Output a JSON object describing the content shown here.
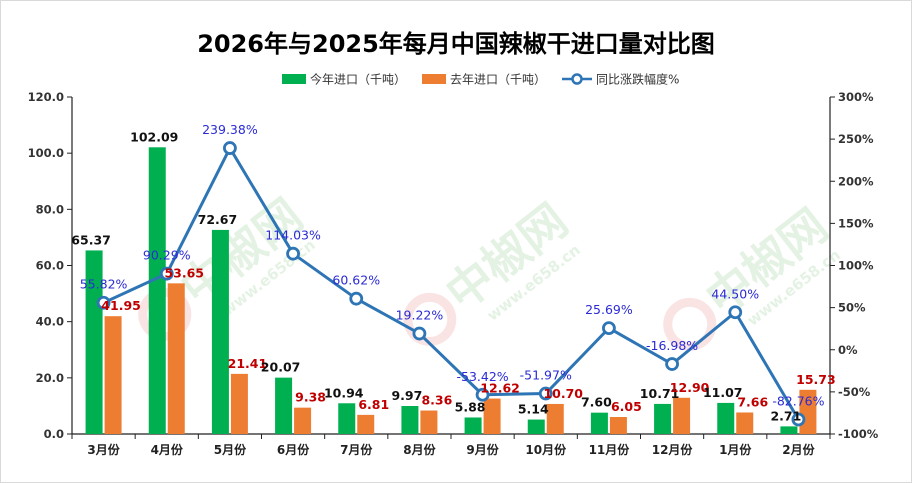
{
  "chart_data": {
    "type": "bar+line",
    "title": "2026年与2025年每月中国辣椒干进口量对比图",
    "categories": [
      "3月份",
      "4月份",
      "5月份",
      "6月份",
      "7月份",
      "8月份",
      "9月份",
      "10月份",
      "11月份",
      "12月份",
      "1月份",
      "2月份"
    ],
    "series": [
      {
        "name": "今年进口（千吨）",
        "kind": "bar",
        "axis": "left",
        "color": "#00b050",
        "values": [
          65.37,
          102.09,
          72.67,
          20.07,
          10.94,
          9.97,
          5.88,
          5.14,
          7.6,
          10.71,
          11.07,
          2.71
        ],
        "labels": [
          "65.37",
          "102.09",
          "72.67",
          "20.07",
          "10.94",
          "9.97",
          "5.88",
          "5.14",
          "7.60",
          "10.71",
          "11.07",
          "2.71"
        ]
      },
      {
        "name": "去年进口（千吨）",
        "kind": "bar",
        "axis": "left",
        "color": "#ed7d31",
        "values": [
          41.95,
          53.65,
          21.41,
          9.38,
          6.81,
          8.36,
          12.62,
          10.7,
          6.05,
          12.9,
          7.66,
          15.73
        ],
        "labels": [
          "41.95",
          "53.65",
          "21.41",
          "9.38",
          "6.81",
          "8.36",
          "12.62",
          "10.70",
          "6.05",
          "12.90",
          "7.66",
          "15.73"
        ]
      },
      {
        "name": "同比涨跌幅度%",
        "kind": "line",
        "axis": "right",
        "color": "#2e75b6",
        "values": [
          55.82,
          90.29,
          239.38,
          114.03,
          60.62,
          19.22,
          -53.42,
          -51.97,
          25.69,
          -16.98,
          44.5,
          -82.76
        ],
        "labels": [
          "55.82%",
          "90.29%",
          "239.38%",
          "114.03%",
          "60.62%",
          "19.22%",
          "-53.42%",
          "-51.97%",
          "25.69%",
          "-16.98%",
          "44.50%",
          "-82.76%"
        ]
      }
    ],
    "y_left": {
      "min": 0,
      "max": 120,
      "ticks": [
        "0.0",
        "20.0",
        "40.0",
        "60.0",
        "80.0",
        "100.0",
        "120.0"
      ],
      "tick_values": [
        0,
        20,
        40,
        60,
        80,
        100,
        120
      ]
    },
    "y_right": {
      "min": -100,
      "max": 300,
      "ticks": [
        "-100%",
        "-50%",
        "0%",
        "50%",
        "100%",
        "150%",
        "200%",
        "250%",
        "300%"
      ],
      "tick_values": [
        -100,
        -50,
        0,
        50,
        100,
        150,
        200,
        250,
        300
      ]
    },
    "legend_position": "top-center",
    "grid": false,
    "watermark": {
      "text": "中椒网",
      "url": "www.e658.cn"
    }
  }
}
